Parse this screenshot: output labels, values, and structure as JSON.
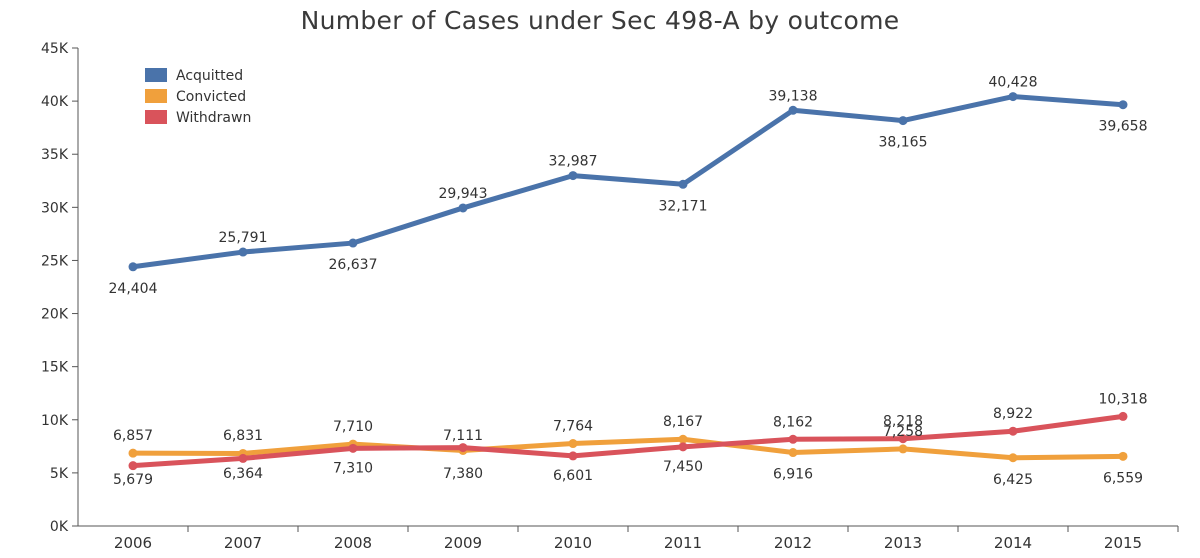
{
  "chart_data": {
    "type": "line",
    "title": "Number of Cases under Sec 498-A by outcome",
    "xlabel": "",
    "ylabel": "",
    "categories": [
      "2006",
      "2007",
      "2008",
      "2009",
      "2010",
      "2011",
      "2012",
      "2013",
      "2014",
      "2015"
    ],
    "ylim": [
      0,
      45000
    ],
    "yticks": [
      0,
      5000,
      10000,
      15000,
      20000,
      25000,
      30000,
      35000,
      40000,
      45000
    ],
    "ytick_labels": [
      "0K",
      "5K",
      "10K",
      "15K",
      "20K",
      "25K",
      "30K",
      "35K",
      "40K",
      "45K"
    ],
    "grid": false,
    "legend_position": "top-left",
    "series": [
      {
        "name": "Acquitted",
        "color": "#4a73aa",
        "values": [
          24404,
          25791,
          26637,
          29943,
          32987,
          32171,
          39138,
          38165,
          40428,
          39658
        ],
        "labels": [
          "24,404",
          "25,791",
          "26,637",
          "29,943",
          "32,987",
          "32,171",
          "39,138",
          "38,165",
          "40,428",
          "39,658"
        ]
      },
      {
        "name": "Convicted",
        "color": "#f0a03c",
        "values": [
          6857,
          6831,
          7710,
          7111,
          7764,
          8167,
          6916,
          7258,
          6425,
          6559
        ],
        "labels": [
          "6,857",
          "6,831",
          "7,710",
          "7,111",
          "7,764",
          "8,167",
          "6,916",
          "7,258",
          "6,425",
          "6,559"
        ]
      },
      {
        "name": "Withdrawn",
        "color": "#d9535b",
        "values": [
          5679,
          6364,
          7310,
          7380,
          6601,
          7450,
          8162,
          8218,
          8922,
          10318
        ],
        "labels": [
          "5,679",
          "6,364",
          "7,310",
          "7,380",
          "6,601",
          "7,450",
          "8,162",
          "8,218",
          "8,922",
          "10,318"
        ]
      }
    ]
  }
}
